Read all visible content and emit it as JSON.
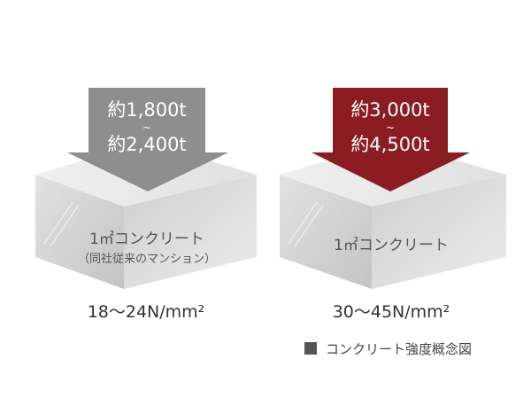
{
  "blocks": [
    {
      "load_top": "約1,800t",
      "tilde": "~",
      "load_bottom": "約2,400t",
      "label": "1㎡コンクリート",
      "sublabel": "（同社従来のマンション）",
      "strength": "18〜24N/mm²",
      "arrow_color": "#8e8e8e"
    },
    {
      "load_top": "約3,000t",
      "tilde": "~",
      "load_bottom": "約4,500t",
      "label": "1㎡コンクリート",
      "strength": "30〜45N/mm²",
      "arrow_color": "#8b1c22"
    }
  ],
  "legend": {
    "label": "コンクリート強度概念図",
    "swatch_color": "#555555"
  }
}
